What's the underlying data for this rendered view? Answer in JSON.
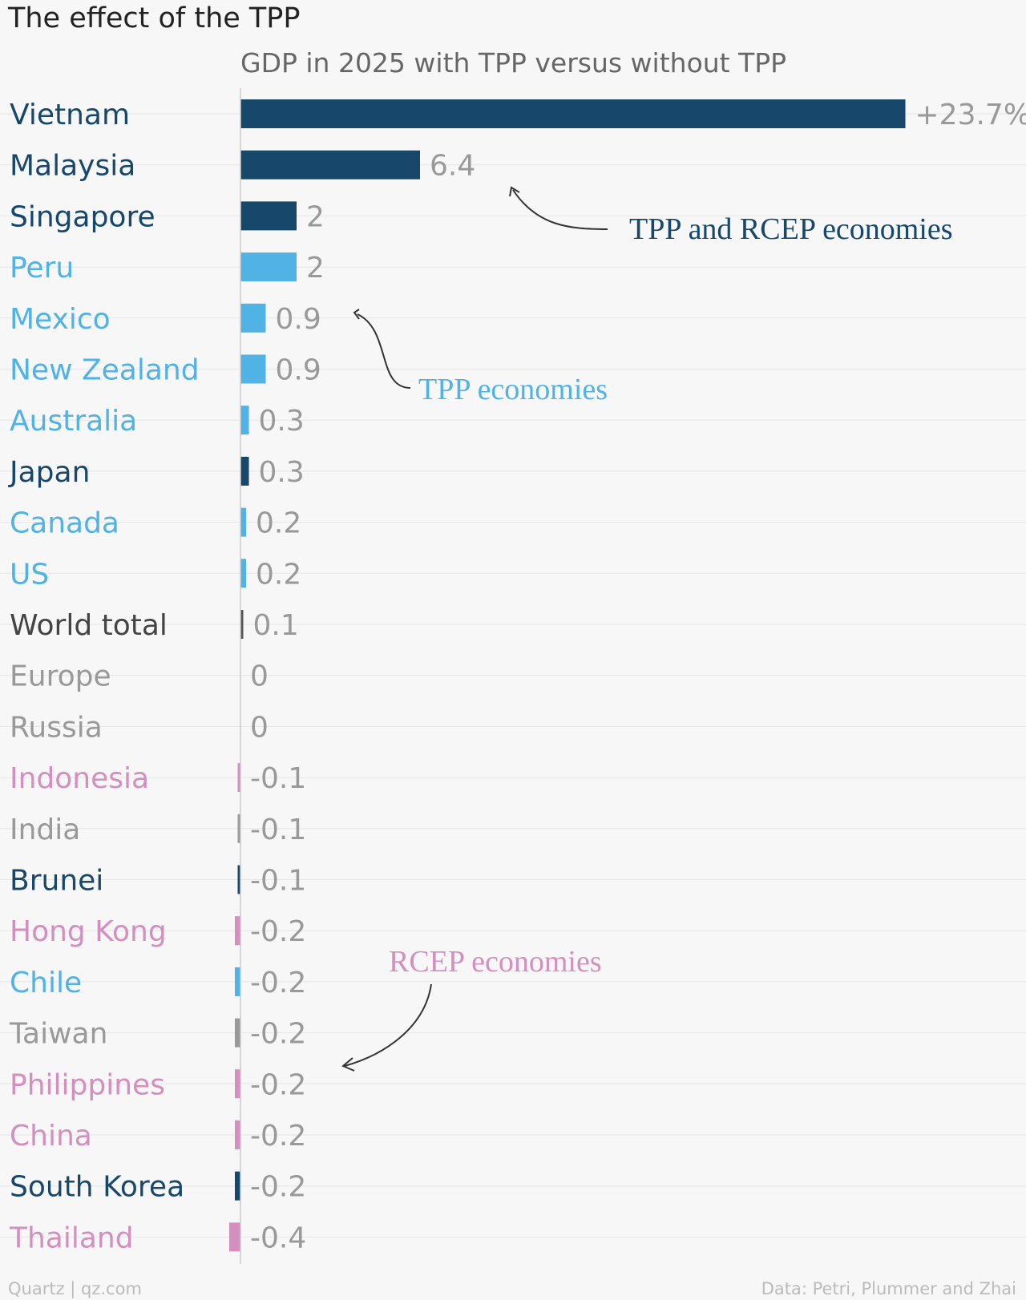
{
  "chart_data": {
    "type": "bar",
    "orientation": "horizontal",
    "title": "The effect of the TPP",
    "subtitle": "GDP in 2025 with TPP versus without TPP",
    "value_suffix_first": "%",
    "value_prefix_first": "+",
    "categories": [
      "Vietnam",
      "Malaysia",
      "Singapore",
      "Peru",
      "Mexico",
      "New Zealand",
      "Australia",
      "Japan",
      "Canada",
      "US",
      "World total",
      "Europe",
      "Russia",
      "Indonesia",
      "India",
      "Brunei",
      "Hong Kong",
      "Chile",
      "Taiwan",
      "Philippines",
      "China",
      "South Korea",
      "Thailand"
    ],
    "values": [
      23.7,
      6.4,
      2,
      2,
      0.9,
      0.9,
      0.3,
      0.3,
      0.2,
      0.2,
      0.1,
      0,
      0,
      -0.1,
      -0.1,
      -0.1,
      -0.2,
      -0.2,
      -0.2,
      -0.2,
      -0.2,
      -0.2,
      -0.4
    ],
    "groups": [
      "both",
      "both",
      "both",
      "tpp",
      "tpp",
      "tpp",
      "tpp",
      "both",
      "tpp",
      "tpp",
      "world",
      "other",
      "other",
      "rcep",
      "other",
      "both",
      "rcep",
      "tpp",
      "other",
      "rcep",
      "rcep",
      "both",
      "rcep"
    ],
    "colors": {
      "both": "#17476b",
      "tpp": "#51b2e5",
      "rcep": "#d38fbd",
      "world": "#555555",
      "other": "#999999"
    },
    "label_colors": {
      "both": "#17476b",
      "tpp": "#51b2e5",
      "rcep": "#d38fbd",
      "world": "#444444",
      "other": "#999999"
    },
    "annotations": [
      {
        "text": "TPP and RCEP economies",
        "group": "both"
      },
      {
        "text": "TPP economies",
        "group": "tpp"
      },
      {
        "text": "RCEP economies",
        "group": "rcep"
      }
    ]
  },
  "footer": {
    "source_left": "Quartz | qz.com",
    "source_right": "Data: Petri, Plummer and Zhai"
  }
}
